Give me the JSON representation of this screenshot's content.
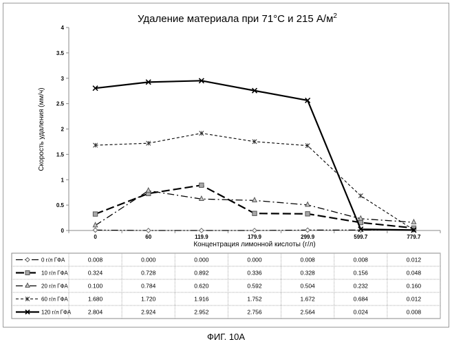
{
  "chart_data": {
    "type": "line",
    "title": "Удаление материала при 71°С и 215 А/м",
    "title_superscript": "2",
    "xlabel": "Концентрация лимонной кислоты (г/л)",
    "ylabel": "Скорость удаления (мм/ч)",
    "categories": [
      "0",
      "60",
      "119.9",
      "179.9",
      "299.9",
      "599.7",
      "779.7"
    ],
    "ylim": [
      0,
      4
    ],
    "yticks": [
      "0",
      "0.5",
      "1",
      "1.5",
      "2",
      "2.5",
      "3",
      "3.5",
      "4"
    ],
    "grid": false,
    "legend": "table-below",
    "series": [
      {
        "name": "0 г/л ГФА",
        "marker": "diamond",
        "dash": "dash-dot-dot",
        "values": [
          0.008,
          0.0,
          0.0,
          0.0,
          0.008,
          0.008,
          0.012
        ],
        "labels": [
          "0.008",
          "0.000",
          "0.000",
          "0.000",
          "0.008",
          "0.008",
          "0.012"
        ]
      },
      {
        "name": "10 г/л ГФА",
        "marker": "square",
        "dash": "long-dash",
        "values": [
          0.324,
          0.728,
          0.892,
          0.336,
          0.328,
          0.156,
          0.048
        ],
        "labels": [
          "0.324",
          "0.728",
          "0.892",
          "0.336",
          "0.328",
          "0.156",
          "0.048"
        ]
      },
      {
        "name": "20 г/л ГФА",
        "marker": "triangle",
        "dash": "dash-dot",
        "values": [
          0.1,
          0.784,
          0.62,
          0.592,
          0.504,
          0.232,
          0.16
        ],
        "labels": [
          "0.100",
          "0.784",
          "0.620",
          "0.592",
          "0.504",
          "0.232",
          "0.160"
        ]
      },
      {
        "name": "60 г/л ГФА",
        "marker": "star",
        "dash": "short-dash",
        "values": [
          1.68,
          1.72,
          1.916,
          1.752,
          1.672,
          0.684,
          0.012
        ],
        "labels": [
          "1.680",
          "1.720",
          "1.916",
          "1.752",
          "1.672",
          "0.684",
          "0.012"
        ]
      },
      {
        "name": "120 г/л ГФА",
        "marker": "x",
        "dash": "solid",
        "values": [
          2.804,
          2.924,
          2.952,
          2.756,
          2.564,
          0.024,
          0.008
        ],
        "labels": [
          "2.804",
          "2.924",
          "2.952",
          "2.756",
          "2.564",
          "0.024",
          "0.008"
        ]
      }
    ]
  },
  "caption": "ФИГ. 10А"
}
